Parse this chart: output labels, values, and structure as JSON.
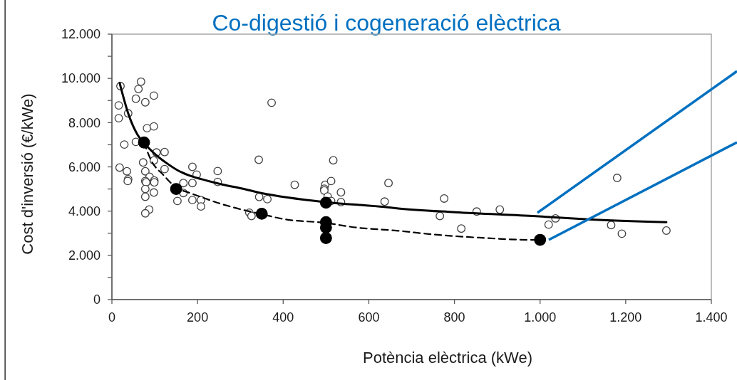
{
  "chart_data": {
    "type": "scatter",
    "title": "Co-digestió i cogeneració elèctrica",
    "xlabel": "Potència elèctrica (kWe)",
    "ylabel": "Cost d'inversió (€/kWe)",
    "xlim": [
      0,
      1400
    ],
    "ylim": [
      0,
      12000
    ],
    "xticks": [
      0,
      200,
      400,
      600,
      800,
      {
        "value": 1000,
        "label": "1.000"
      },
      {
        "value": 1200,
        "label": "1.200"
      },
      {
        "value": 1400,
        "label": "1.400"
      }
    ],
    "yticks": [
      0,
      {
        "value": 1000,
        "label": null
      },
      {
        "value": 2000,
        "label": "2.000"
      },
      {
        "value": 3000,
        "label": null
      },
      {
        "value": 4000,
        "label": "4.000"
      },
      {
        "value": 5000,
        "label": null
      },
      {
        "value": 6000,
        "label": "6.000"
      },
      {
        "value": 7000,
        "label": null
      },
      {
        "value": 8000,
        "label": "8.000"
      },
      {
        "value": 9000,
        "label": null
      },
      {
        "value": 10000,
        "label": "10.000"
      },
      {
        "value": 11000,
        "label": null
      },
      {
        "value": 12000,
        "label": "12.000"
      }
    ],
    "series": [
      {
        "color": "#404040",
        "marker": "circle",
        "x": [
          20,
          68,
          62,
          56,
          78,
          98,
          16,
          16,
          38,
          82,
          98,
          29,
          56,
          104,
          123,
          98,
          73,
          123,
          18,
          35,
          38,
          37,
          78,
          88,
          78,
          80,
          99,
          99,
          78,
          98,
          78,
          87,
          78,
          188,
          198,
          247,
          247,
          167,
          188,
          167,
          153,
          188,
          208,
          208,
          373,
          343,
          517,
          427,
          646,
          498,
          496,
          496,
          512,
          535,
          504,
          512,
          535,
          637,
          344,
          363,
          321,
          326,
          776,
          766,
          816,
          852,
          906,
          1036,
          1020,
          1180,
          1166,
          1191,
          1295
        ],
        "values": [
          9650,
          9850,
          9520,
          9080,
          8920,
          9220,
          8780,
          8200,
          8420,
          7750,
          7830,
          7010,
          7130,
          6650,
          6670,
          6290,
          6200,
          5900,
          5970,
          5800,
          5440,
          5360,
          5800,
          5550,
          5360,
          5300,
          5380,
          5300,
          5000,
          4840,
          4650,
          4070,
          3900,
          6000,
          5650,
          5810,
          5320,
          5270,
          5270,
          4820,
          4460,
          4500,
          4500,
          4210,
          8900,
          6320,
          6300,
          5190,
          5270,
          5190,
          5010,
          4930,
          5360,
          4850,
          4660,
          4460,
          4410,
          4430,
          4640,
          4540,
          3930,
          3780,
          4570,
          3780,
          3210,
          3980,
          4070,
          3670,
          3390,
          5500,
          3370,
          2980,
          3120
        ]
      },
      {
        "type": "line",
        "color": "#000000",
        "line_style": "solid",
        "marker": "none",
        "x": [
          18,
          38,
          60,
          74,
          99,
          127,
          154,
          182,
          210,
          271,
          287,
          348,
          497,
          636,
          669,
          802,
          990,
          1112,
          1295
        ],
        "values": [
          9800,
          8420,
          7450,
          7100,
          6610,
          6180,
          5840,
          5600,
          5440,
          5150,
          5090,
          4820,
          4410,
          4190,
          4120,
          3950,
          3770,
          3630,
          3500
        ]
      },
      {
        "type": "line",
        "color": "#000000",
        "line_style": "dashed",
        "marker": "none",
        "x": [
          75,
          91,
          121,
          149,
          182,
          221,
          237,
          293,
          348,
          404,
          497,
          570,
          669,
          747,
          858,
          979,
          1000
        ],
        "values": [
          7100,
          6320,
          5620,
          5080,
          4820,
          4550,
          4440,
          4120,
          3870,
          3630,
          3470,
          3260,
          3110,
          2950,
          2800,
          2700,
          2700
        ]
      },
      {
        "color": "#000000",
        "marker": "circle",
        "x": [
          75,
          150,
          350,
          500,
          500,
          500,
          500,
          1000
        ],
        "values": [
          7100,
          5000,
          3880,
          4380,
          3500,
          3260,
          2780,
          2700
        ]
      }
    ]
  }
}
